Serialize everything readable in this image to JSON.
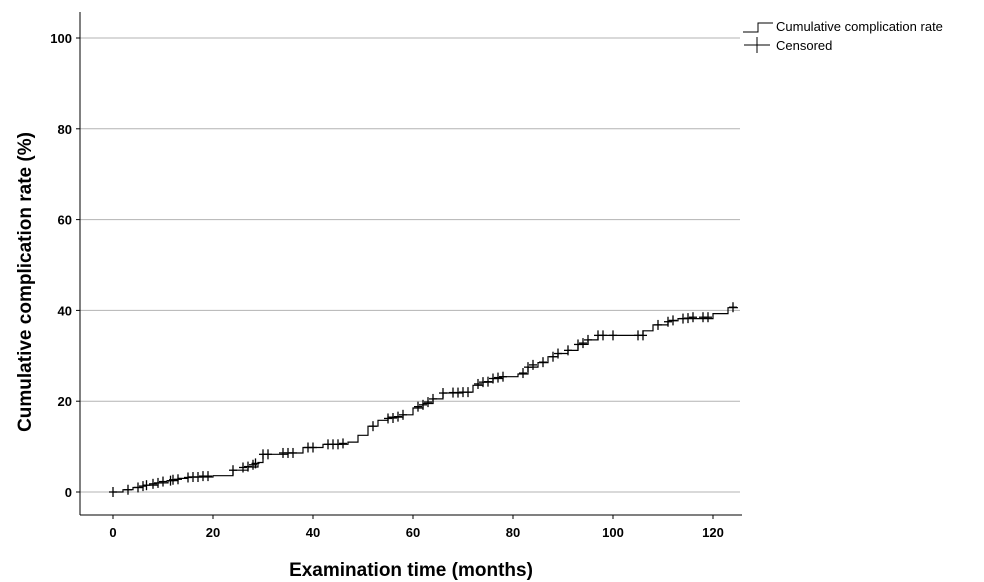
{
  "chart_data": {
    "type": "line",
    "subtype": "kaplan-meier-step",
    "title": "",
    "xlabel": "Examination time (months)",
    "ylabel": "Cumulative complication rate (%)",
    "xlim": [
      0,
      125
    ],
    "ylim": [
      0,
      100
    ],
    "xticks": [
      0,
      20,
      40,
      60,
      80,
      100,
      120
    ],
    "yticks": [
      0,
      20,
      40,
      60,
      80,
      100
    ],
    "grid": "horizontal",
    "legend_position": "top-right",
    "series": [
      {
        "name": "Cumulative complication rate",
        "style": "step",
        "color": "#000000",
        "points": [
          [
            0,
            0
          ],
          [
            2,
            0.5
          ],
          [
            4,
            1.0
          ],
          [
            6,
            1.5
          ],
          [
            9,
            2.0
          ],
          [
            11,
            2.5
          ],
          [
            13,
            3.0
          ],
          [
            15,
            3.3
          ],
          [
            20,
            3.6
          ],
          [
            24,
            4.8
          ],
          [
            27,
            5.5
          ],
          [
            29,
            6.5
          ],
          [
            30,
            8.3
          ],
          [
            35,
            8.6
          ],
          [
            38,
            9.8
          ],
          [
            42,
            10.5
          ],
          [
            47,
            11.0
          ],
          [
            49,
            12.5
          ],
          [
            51,
            14.5
          ],
          [
            53,
            15.8
          ],
          [
            55,
            16.5
          ],
          [
            58,
            17.0
          ],
          [
            60,
            18.5
          ],
          [
            62,
            19.5
          ],
          [
            64,
            20.5
          ],
          [
            66,
            21.8
          ],
          [
            70,
            22.0
          ],
          [
            72,
            23.5
          ],
          [
            74,
            24.2
          ],
          [
            76,
            25.0
          ],
          [
            78,
            25.4
          ],
          [
            81,
            26.0
          ],
          [
            83,
            27.5
          ],
          [
            85,
            28.5
          ],
          [
            87,
            29.8
          ],
          [
            89,
            30.5
          ],
          [
            91,
            31.2
          ],
          [
            93,
            32.5
          ],
          [
            95,
            33.5
          ],
          [
            97,
            34.5
          ],
          [
            106,
            35.5
          ],
          [
            108,
            36.8
          ],
          [
            111,
            37.7
          ],
          [
            113,
            38.2
          ],
          [
            120,
            39.3
          ],
          [
            123,
            40.6
          ],
          [
            125,
            40.6
          ]
        ]
      },
      {
        "name": "Censored",
        "marker": "+",
        "color": "#000000",
        "points": [
          [
            0,
            0
          ],
          [
            3,
            0.5
          ],
          [
            5,
            1.0
          ],
          [
            6,
            1.3
          ],
          [
            6.7,
            1.5
          ],
          [
            8,
            1.8
          ],
          [
            9,
            2.0
          ],
          [
            10,
            2.3
          ],
          [
            11.5,
            2.5
          ],
          [
            12,
            2.7
          ],
          [
            13,
            2.8
          ],
          [
            15,
            3.2
          ],
          [
            16,
            3.3
          ],
          [
            17,
            3.3
          ],
          [
            18,
            3.5
          ],
          [
            19,
            3.5
          ],
          [
            24,
            4.8
          ],
          [
            26,
            5.4
          ],
          [
            27,
            5.6
          ],
          [
            28,
            6.0
          ],
          [
            28.5,
            6.3
          ],
          [
            30,
            8.3
          ],
          [
            31,
            8.3
          ],
          [
            34,
            8.6
          ],
          [
            35,
            8.6
          ],
          [
            36,
            8.6
          ],
          [
            39,
            9.8
          ],
          [
            40,
            9.8
          ],
          [
            43,
            10.5
          ],
          [
            44,
            10.5
          ],
          [
            45,
            10.5
          ],
          [
            46,
            10.7
          ],
          [
            52,
            14.5
          ],
          [
            55,
            16.2
          ],
          [
            56,
            16.3
          ],
          [
            57,
            16.6
          ],
          [
            58,
            17.0
          ],
          [
            61,
            18.8
          ],
          [
            62,
            19.2
          ],
          [
            63,
            19.8
          ],
          [
            64,
            20.5
          ],
          [
            66,
            21.8
          ],
          [
            68,
            21.9
          ],
          [
            69,
            21.9
          ],
          [
            70,
            22.0
          ],
          [
            71,
            22.0
          ],
          [
            73,
            23.8
          ],
          [
            74,
            24.2
          ],
          [
            75,
            24.3
          ],
          [
            76,
            25.0
          ],
          [
            77,
            25.2
          ],
          [
            78,
            25.4
          ],
          [
            82,
            26.2
          ],
          [
            83,
            27.5
          ],
          [
            84,
            28.0
          ],
          [
            86,
            28.6
          ],
          [
            88,
            29.8
          ],
          [
            89,
            30.5
          ],
          [
            91,
            31.2
          ],
          [
            93,
            32.5
          ],
          [
            94,
            32.8
          ],
          [
            95,
            33.5
          ],
          [
            97,
            34.5
          ],
          [
            98,
            34.5
          ],
          [
            100,
            34.5
          ],
          [
            105,
            34.5
          ],
          [
            106,
            34.5
          ],
          [
            109,
            36.8
          ],
          [
            111,
            37.5
          ],
          [
            112,
            37.8
          ],
          [
            114,
            38.2
          ],
          [
            115,
            38.3
          ],
          [
            116,
            38.5
          ],
          [
            118,
            38.5
          ],
          [
            119,
            38.5
          ],
          [
            124,
            40.7
          ]
        ]
      }
    ]
  }
}
